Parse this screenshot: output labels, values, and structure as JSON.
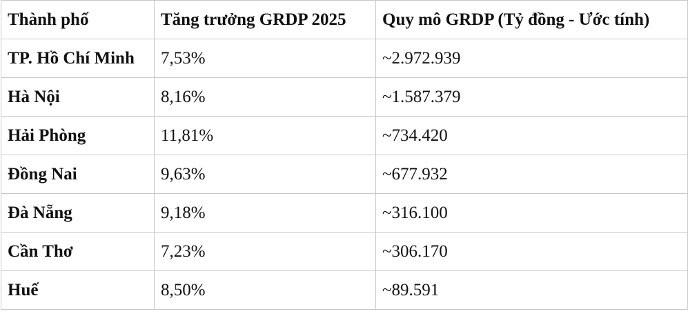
{
  "table": {
    "header": [
      "Thành phố",
      "Tăng trưởng GRDP 2025",
      "Quy mô GRDP (Tỷ đồng - Ước tính)"
    ],
    "rows": [
      [
        "TP. Hồ Chí Minh",
        "7,53%",
        "~2.972.939"
      ],
      [
        "Hà Nội",
        "8,16%",
        "~1.587.379"
      ],
      [
        "Hải Phòng",
        "11,81%",
        "~734.420"
      ],
      [
        "Đồng Nai",
        "9,63%",
        "~677.932"
      ],
      [
        "Đà Nẵng",
        "9,18%",
        "~316.100"
      ],
      [
        "Cần Thơ",
        "7,23%",
        "~306.170"
      ],
      [
        "Huế",
        "8,50%",
        "~89.591"
      ]
    ]
  }
}
